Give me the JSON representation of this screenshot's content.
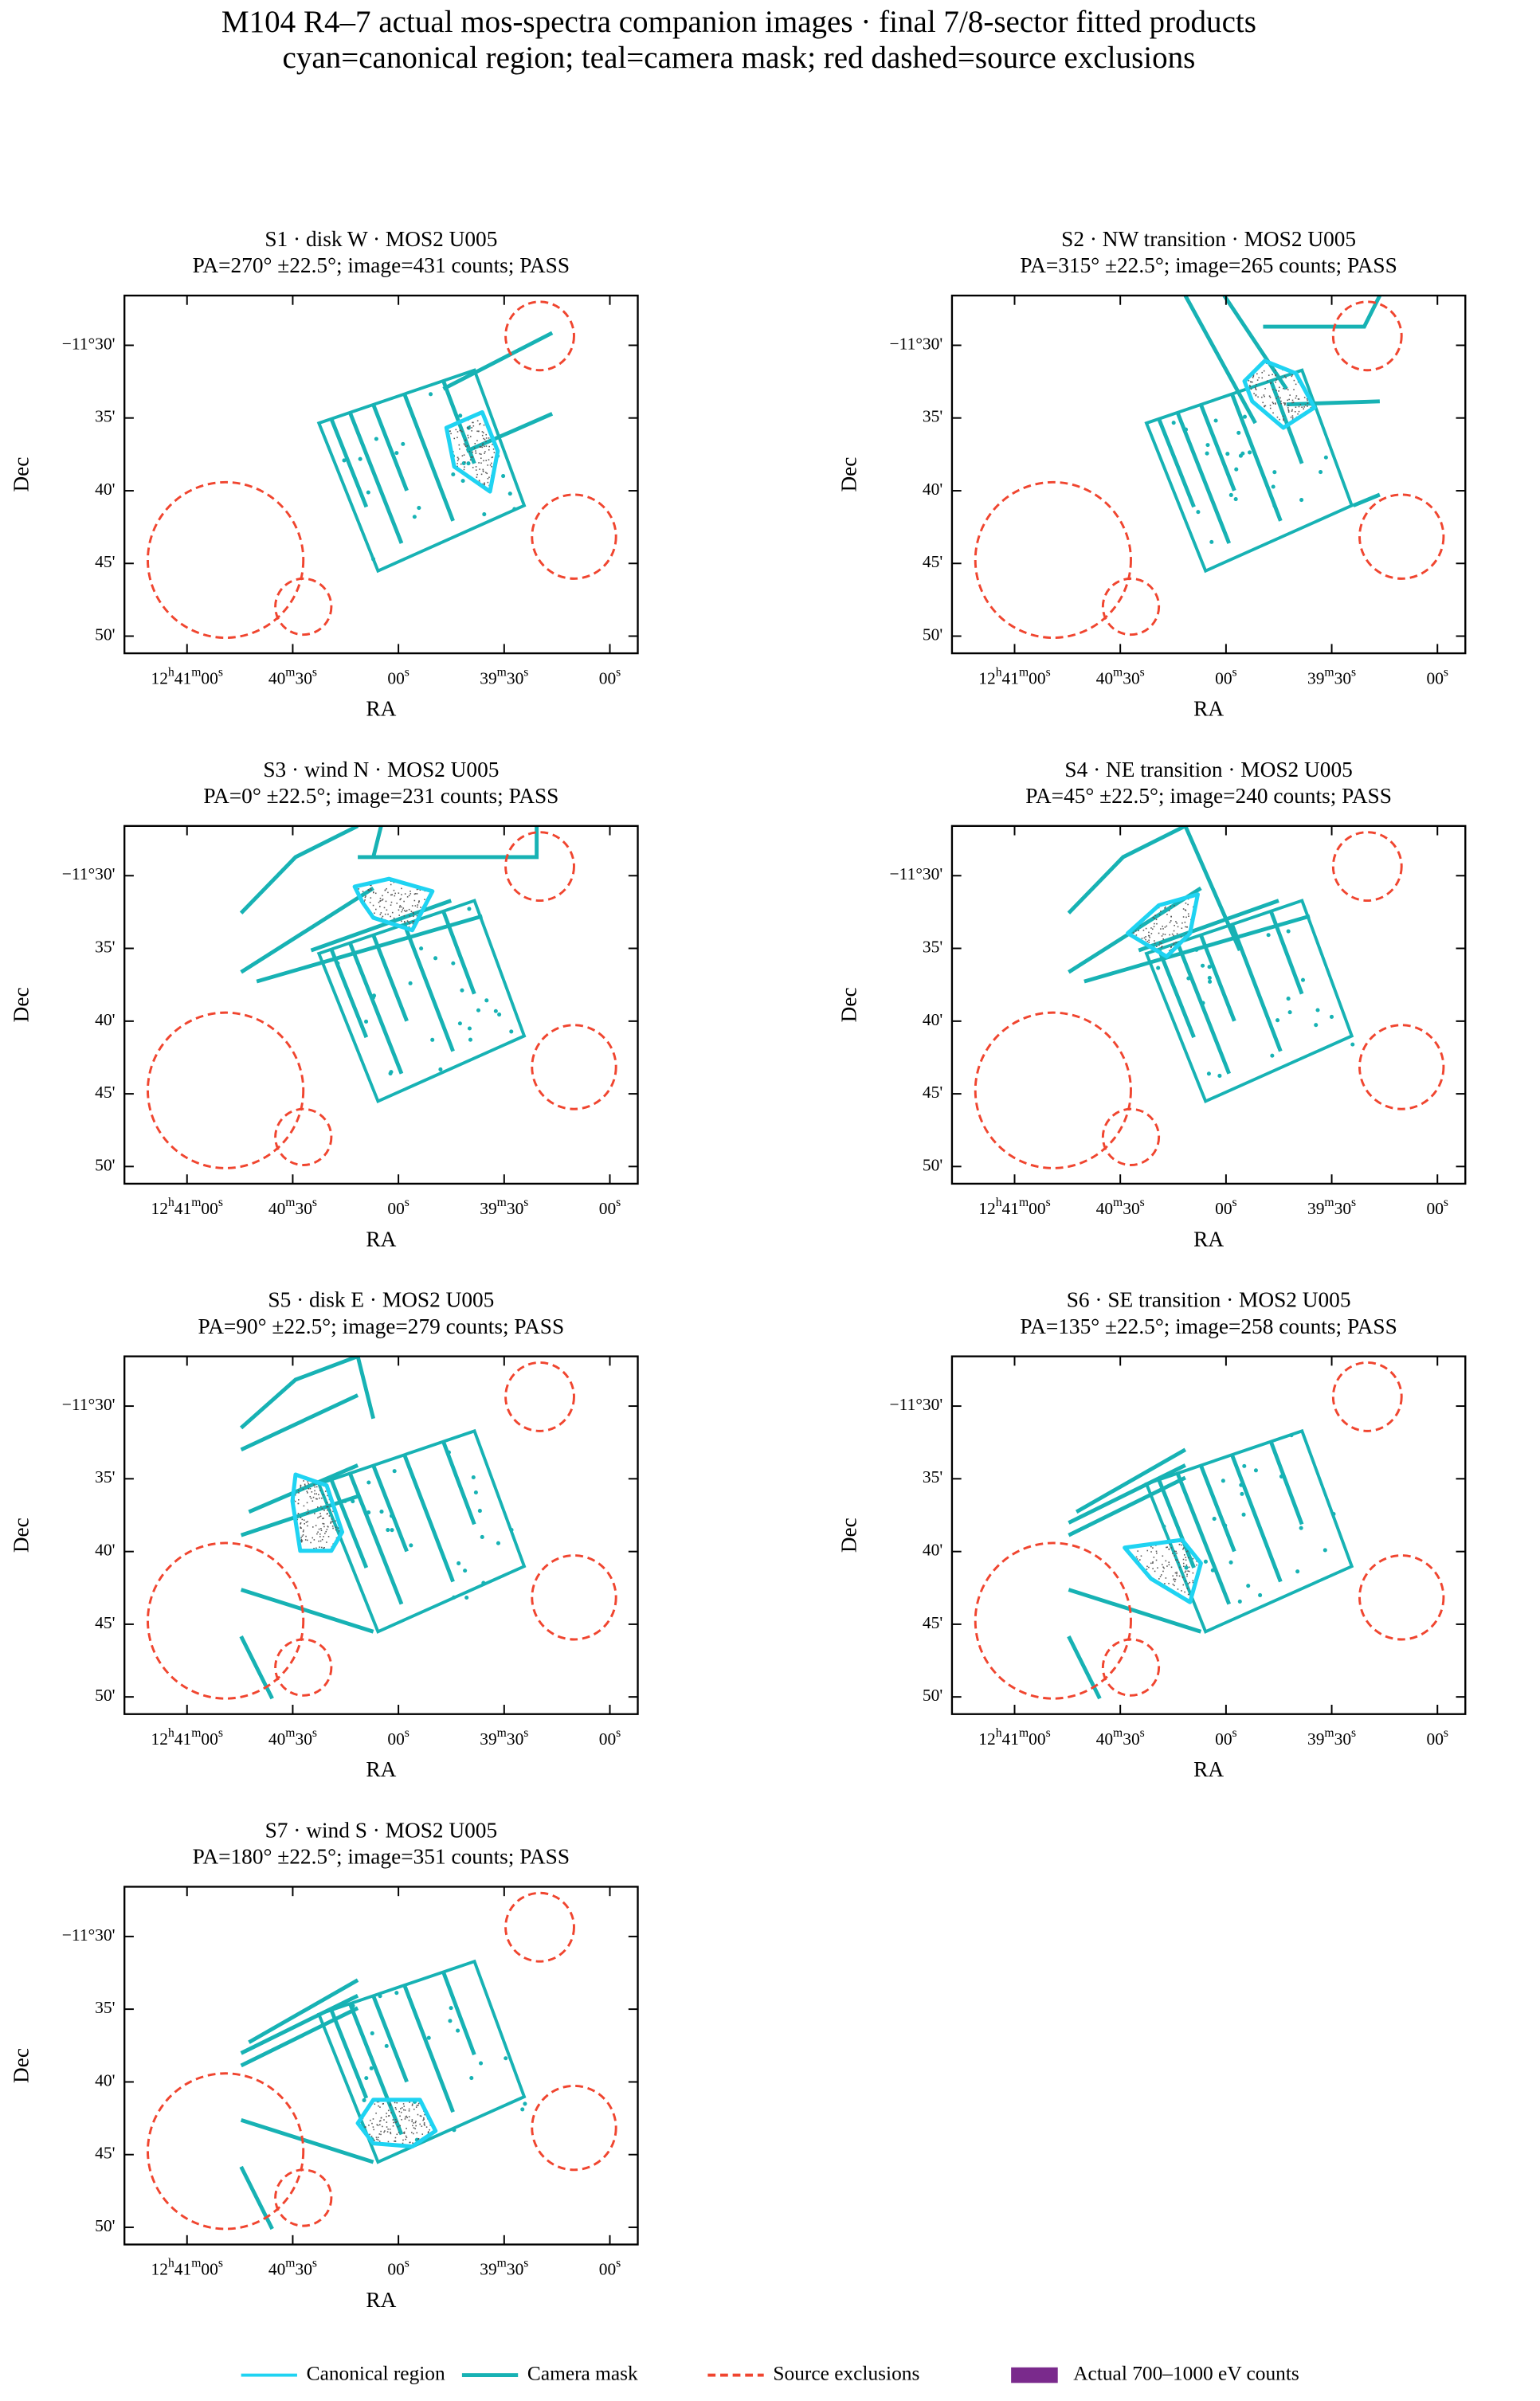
{
  "figure": {
    "title": "M104 R4–7 actual mos-spectra companion images · final 7/8-sector fitted products",
    "subtitle": "cyan=canonical region; teal=camera mask; red dashed=source exclusions"
  },
  "legend": [
    {
      "label": "Canonical region",
      "color": "#1fd3f2"
    },
    {
      "label": "Camera mask",
      "color": "#17b2b4"
    },
    {
      "label": "Source exclusions",
      "color": "#f0452f"
    },
    {
      "label": "Actual 700–1000 eV counts",
      "color": "#7a2a8c"
    }
  ],
  "chart_data": [
    {
      "type": "image",
      "title": "S1 · disk W · MOS2 U005",
      "subtitle": "PA=270° ±22.5°; image=431 counts; PASS",
      "xlabel": "RA",
      "ylabel": "Dec",
      "xlim": [
        190.324,
        189.717
      ],
      "ylim": [
        -11.853,
        -11.443
      ],
      "xticks": [
        {
          "value": 190.25,
          "label": "12h41m00s"
        },
        {
          "value": 190.125,
          "label": "40m30s"
        },
        {
          "value": 190.0,
          "label": "00s"
        },
        {
          "value": 189.875,
          "label": "39m30s"
        },
        {
          "value": 189.75,
          "label": "00s"
        }
      ],
      "yticks": [
        {
          "value": -11.5,
          "label": "−11°30'"
        },
        {
          "value": -11.5833,
          "label": "35'"
        },
        {
          "value": -11.6667,
          "label": "40'"
        },
        {
          "value": -11.75,
          "label": "45'"
        },
        {
          "value": -11.8333,
          "label": "50'"
        }
      ]
    },
    {
      "type": "image",
      "title": "S2 · NW transition · MOS2 U005",
      "subtitle": "PA=315° ±22.5°; image=265 counts; PASS",
      "xlabel": "RA",
      "ylabel": "Dec",
      "xlim": [
        190.324,
        189.717
      ],
      "ylim": [
        -11.853,
        -11.443
      ],
      "xticks": [
        {
          "value": 190.25,
          "label": "12h41m00s"
        },
        {
          "value": 190.125,
          "label": "40m30s"
        },
        {
          "value": 190.0,
          "label": "00s"
        },
        {
          "value": 189.875,
          "label": "39m30s"
        },
        {
          "value": 189.75,
          "label": "00s"
        }
      ],
      "yticks": [
        {
          "value": -11.5,
          "label": "−11°30'"
        },
        {
          "value": -11.5833,
          "label": "35'"
        },
        {
          "value": -11.6667,
          "label": "40'"
        },
        {
          "value": -11.75,
          "label": "45'"
        },
        {
          "value": -11.8333,
          "label": "50'"
        }
      ]
    },
    {
      "type": "image",
      "title": "S3 · wind N · MOS2 U005",
      "subtitle": "PA=0° ±22.5°; image=231 counts; PASS",
      "xlabel": "RA",
      "ylabel": "Dec",
      "xlim": [
        190.324,
        189.717
      ],
      "ylim": [
        -11.853,
        -11.443
      ],
      "xticks": [
        {
          "value": 190.25,
          "label": "12h41m00s"
        },
        {
          "value": 190.125,
          "label": "40m30s"
        },
        {
          "value": 190.0,
          "label": "00s"
        },
        {
          "value": 189.875,
          "label": "39m30s"
        },
        {
          "value": 189.75,
          "label": "00s"
        }
      ],
      "yticks": [
        {
          "value": -11.5,
          "label": "−11°30'"
        },
        {
          "value": -11.5833,
          "label": "35'"
        },
        {
          "value": -11.6667,
          "label": "40'"
        },
        {
          "value": -11.75,
          "label": "45'"
        },
        {
          "value": -11.8333,
          "label": "50'"
        }
      ]
    },
    {
      "type": "image",
      "title": "S4 · NE transition · MOS2 U005",
      "subtitle": "PA=45° ±22.5°; image=240 counts; PASS",
      "xlabel": "RA",
      "ylabel": "Dec",
      "xlim": [
        190.324,
        189.717
      ],
      "ylim": [
        -11.853,
        -11.443
      ],
      "xticks": [
        {
          "value": 190.25,
          "label": "12h41m00s"
        },
        {
          "value": 190.125,
          "label": "40m30s"
        },
        {
          "value": 190.0,
          "label": "00s"
        },
        {
          "value": 189.875,
          "label": "39m30s"
        },
        {
          "value": 189.75,
          "label": "00s"
        }
      ],
      "yticks": [
        {
          "value": -11.5,
          "label": "−11°30'"
        },
        {
          "value": -11.5833,
          "label": "35'"
        },
        {
          "value": -11.6667,
          "label": "40'"
        },
        {
          "value": -11.75,
          "label": "45'"
        },
        {
          "value": -11.8333,
          "label": "50'"
        }
      ]
    },
    {
      "type": "image",
      "title": "S5 · disk E · MOS2 U005",
      "subtitle": "PA=90° ±22.5°; image=279 counts; PASS",
      "xlabel": "RA",
      "ylabel": "Dec",
      "xlim": [
        190.324,
        189.717
      ],
      "ylim": [
        -11.853,
        -11.443
      ],
      "xticks": [
        {
          "value": 190.25,
          "label": "12h41m00s"
        },
        {
          "value": 190.125,
          "label": "40m30s"
        },
        {
          "value": 190.0,
          "label": "00s"
        },
        {
          "value": 189.875,
          "label": "39m30s"
        },
        {
          "value": 189.75,
          "label": "00s"
        }
      ],
      "yticks": [
        {
          "value": -11.5,
          "label": "−11°30'"
        },
        {
          "value": -11.5833,
          "label": "35'"
        },
        {
          "value": -11.6667,
          "label": "40'"
        },
        {
          "value": -11.75,
          "label": "45'"
        },
        {
          "value": -11.8333,
          "label": "50'"
        }
      ]
    },
    {
      "type": "image",
      "title": "S6 · SE transition · MOS2 U005",
      "subtitle": "PA=135° ±22.5°; image=258 counts; PASS",
      "xlabel": "RA",
      "ylabel": "Dec",
      "xlim": [
        190.324,
        189.717
      ],
      "ylim": [
        -11.853,
        -11.443
      ],
      "xticks": [
        {
          "value": 190.25,
          "label": "12h41m00s"
        },
        {
          "value": 190.125,
          "label": "40m30s"
        },
        {
          "value": 190.0,
          "label": "00s"
        },
        {
          "value": 189.875,
          "label": "39m30s"
        },
        {
          "value": 189.75,
          "label": "00s"
        }
      ],
      "yticks": [
        {
          "value": -11.5,
          "label": "−11°30'"
        },
        {
          "value": -11.5833,
          "label": "35'"
        },
        {
          "value": -11.6667,
          "label": "40'"
        },
        {
          "value": -11.75,
          "label": "45'"
        },
        {
          "value": -11.8333,
          "label": "50'"
        }
      ]
    },
    {
      "type": "image",
      "title": "S7 · wind S · MOS2 U005",
      "subtitle": "PA=180° ±22.5°; image=351 counts; PASS",
      "xlabel": "RA",
      "ylabel": "Dec",
      "xlim": [
        190.324,
        189.717
      ],
      "ylim": [
        -11.853,
        -11.443
      ],
      "xticks": [
        {
          "value": 190.25,
          "label": "12h41m00s"
        },
        {
          "value": 190.125,
          "label": "40m30s"
        },
        {
          "value": 190.0,
          "label": "00s"
        },
        {
          "value": 189.875,
          "label": "39m30s"
        },
        {
          "value": 189.75,
          "label": "00s"
        }
      ],
      "yticks": [
        {
          "value": -11.5,
          "label": "−11°30'"
        },
        {
          "value": -11.5833,
          "label": "35'"
        },
        {
          "value": -11.6667,
          "label": "40'"
        },
        {
          "value": -11.75,
          "label": "45'"
        },
        {
          "value": -11.8333,
          "label": "50'"
        }
      ]
    }
  ]
}
